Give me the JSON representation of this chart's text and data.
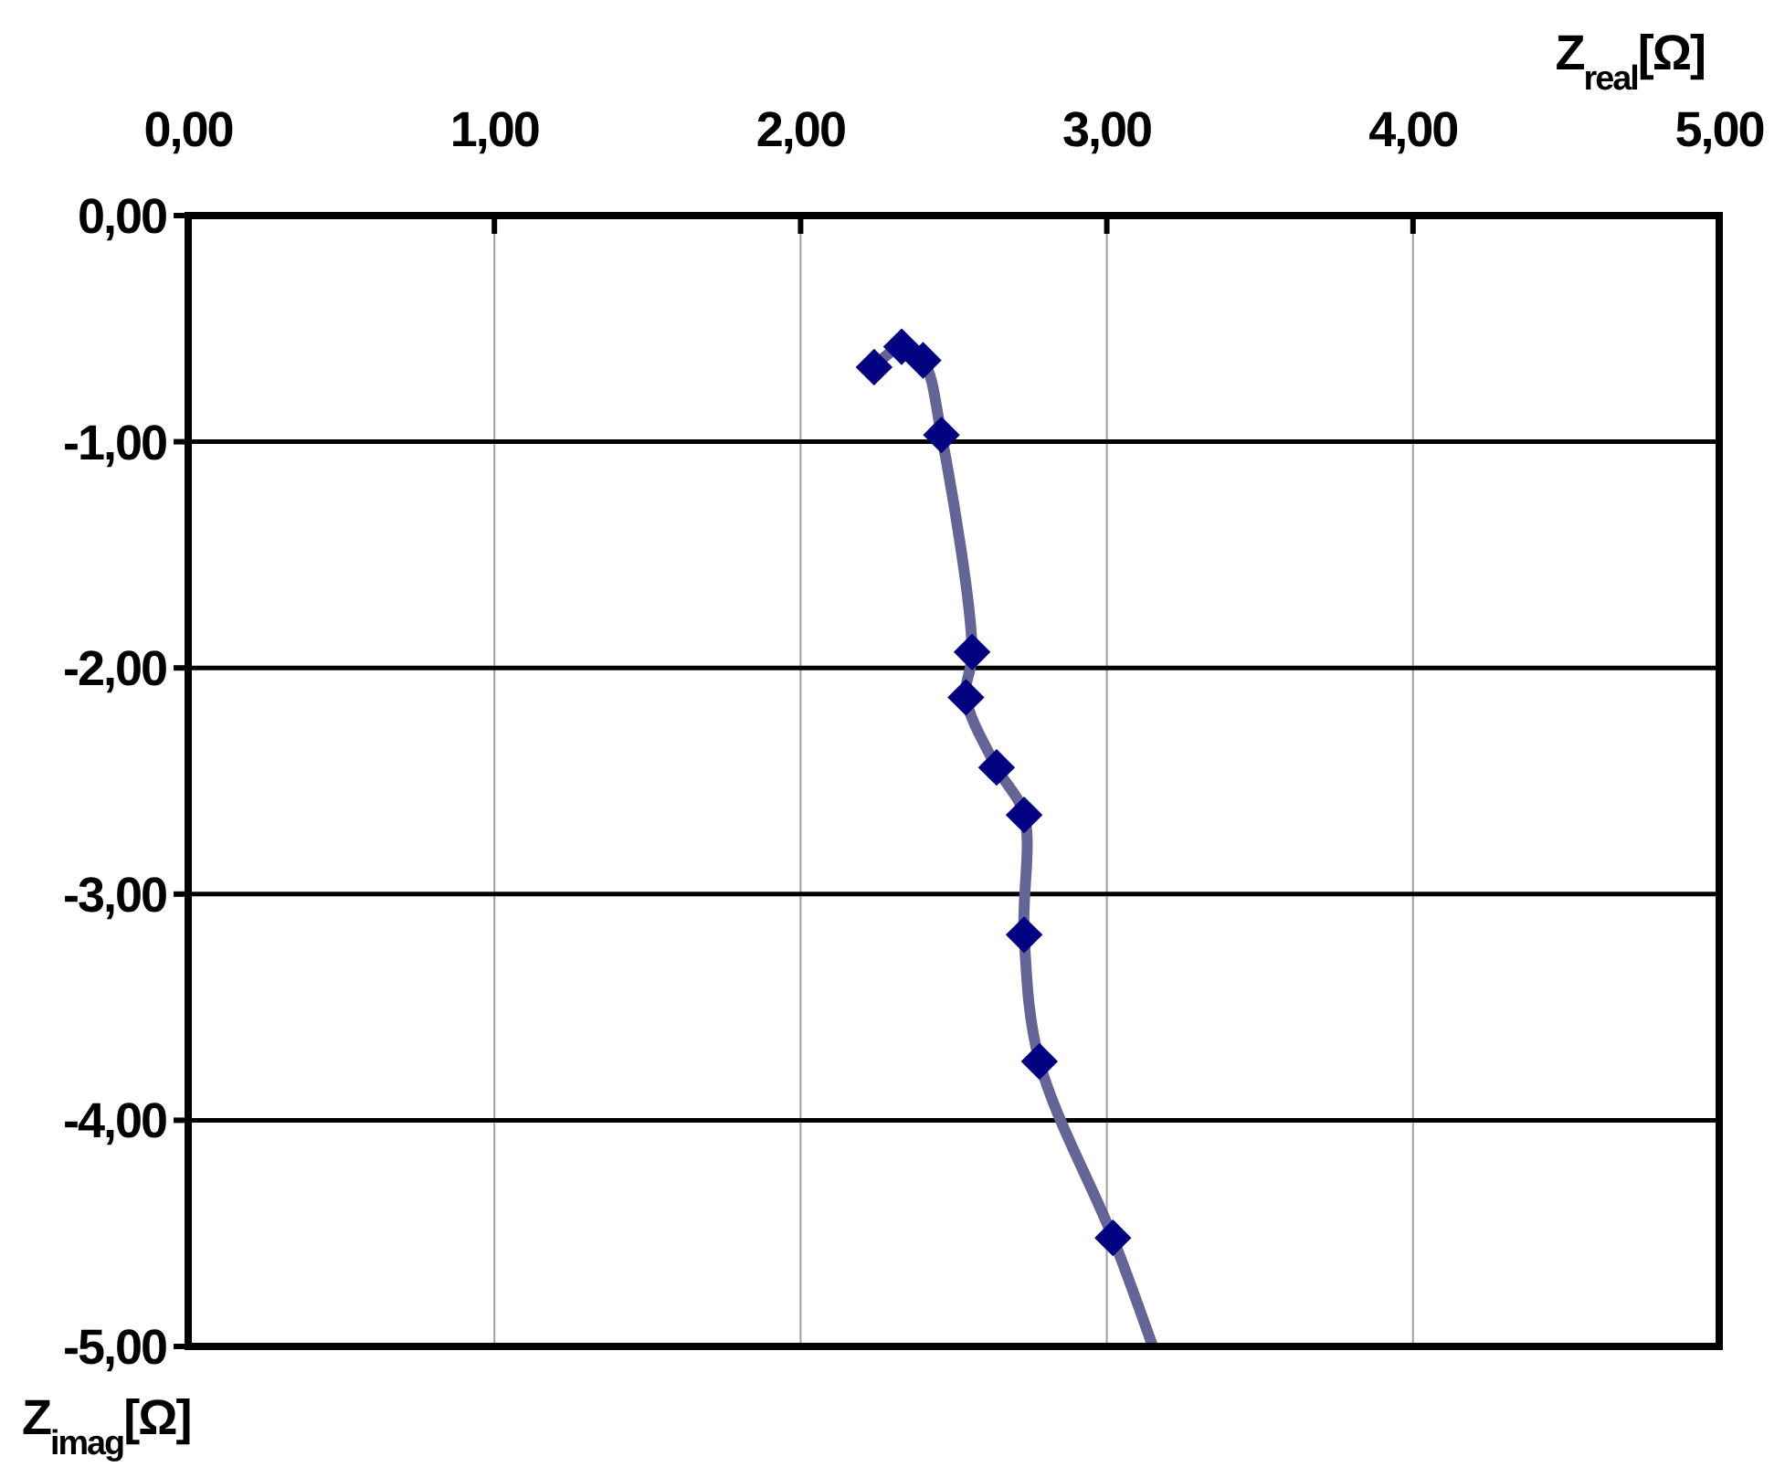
{
  "chart_data": {
    "type": "scatter",
    "xlabel": "Z$_{real}$[Ω]",
    "ylabel": "Z$_{imag}$[Ω]",
    "xlim": [
      0,
      5
    ],
    "ylim": [
      -5,
      0
    ],
    "xticks": [
      {
        "value": 0,
        "label": "0,00"
      },
      {
        "value": 1,
        "label": "1,00"
      },
      {
        "value": 2,
        "label": "2,00"
      },
      {
        "value": 3,
        "label": "3,00"
      },
      {
        "value": 4,
        "label": "4,00"
      },
      {
        "value": 5,
        "label": "5,00"
      }
    ],
    "yticks": [
      {
        "value": 0,
        "label": "0,00"
      },
      {
        "value": -1,
        "label": "-1,00"
      },
      {
        "value": -2,
        "label": "-2,00"
      },
      {
        "value": -3,
        "label": "-3,00"
      },
      {
        "value": -4,
        "label": "-4,00"
      },
      {
        "value": -5,
        "label": "-5,00"
      }
    ],
    "grid": true,
    "series": [
      {
        "type": "line",
        "marker": "none",
        "line_style": "solid",
        "color": "#646496",
        "x": [
          2.24,
          2.33,
          2.4,
          2.46,
          2.56,
          2.54,
          2.64,
          2.73,
          2.73,
          2.78,
          3.02,
          3.15
        ],
        "values": [
          -0.67,
          -0.58,
          -0.64,
          -0.97,
          -1.93,
          -2.13,
          -2.44,
          -2.65,
          -3.18,
          -3.74,
          -4.52,
          -5.0
        ]
      },
      {
        "marker": "diamond",
        "color": "#000080",
        "x": [
          2.24,
          2.33,
          2.4,
          2.46,
          2.56,
          2.54,
          2.64,
          2.73,
          2.73,
          2.78,
          3.02
        ],
        "values": [
          -0.67,
          -0.58,
          -0.64,
          -0.97,
          -1.93,
          -2.13,
          -2.44,
          -2.65,
          -3.18,
          -3.74,
          -4.52
        ]
      }
    ]
  }
}
